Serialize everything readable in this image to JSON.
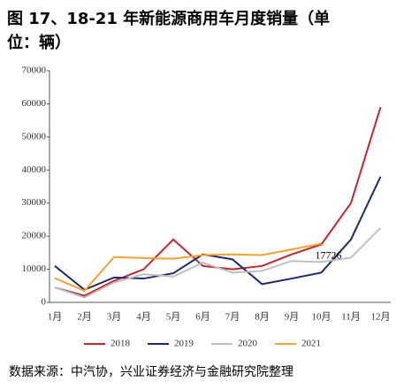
{
  "chart_data": {
    "type": "line",
    "title": "图 17、18-21 年新能源商用车月度销量（单位：辆）",
    "source": "数据来源：中汽协，兴业证券经济与金融研究院整理",
    "categories": [
      "1月",
      "2月",
      "3月",
      "4月",
      "5月",
      "6月",
      "7月",
      "8月",
      "9月",
      "10月",
      "11月",
      "12月"
    ],
    "series": [
      {
        "name": "2018",
        "color": "#c0282d",
        "values": [
          4500,
          2000,
          6500,
          10000,
          19000,
          11000,
          10000,
          11000,
          14500,
          17500,
          30000,
          59000
        ]
      },
      {
        "name": "2019",
        "color": "#1f2a6b",
        "values": [
          11000,
          3800,
          7500,
          7200,
          8800,
          14500,
          13000,
          5500,
          7200,
          9000,
          19000,
          38000
        ]
      },
      {
        "name": "2020",
        "color": "#bfbfbf",
        "values": [
          4500,
          1500,
          6000,
          8500,
          7800,
          12000,
          9000,
          9500,
          12500,
          12200,
          13500,
          22500
        ]
      },
      {
        "name": "2021",
        "color": "#f4a233",
        "values": [
          7300,
          3500,
          13700,
          13400,
          13200,
          14300,
          14500,
          14300,
          16000,
          17726,
          null,
          null
        ]
      }
    ],
    "annotations": [
      {
        "text": "17726",
        "series": 3,
        "index": 9
      }
    ],
    "ylim": [
      0,
      70000
    ],
    "yticks": [
      0,
      10000,
      20000,
      30000,
      40000,
      50000,
      60000,
      70000
    ],
    "legend": "bottom"
  }
}
